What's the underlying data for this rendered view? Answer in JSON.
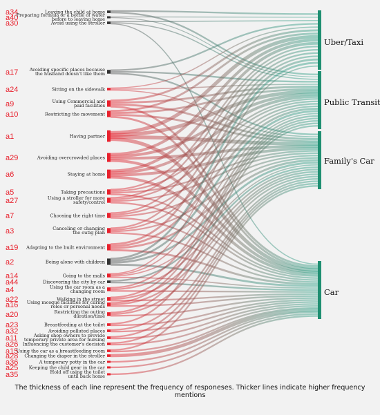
{
  "caption": "The thickness of each line represent the frequency of responeses. Thicker lines indicate higher frequency mentions",
  "colors": {
    "source_start": "#e8212d",
    "target_end": "#27a085",
    "neutral_start": "#555555",
    "node": "#1f8f72"
  },
  "targets": [
    {
      "id": "uber",
      "label": "Uber/Taxi"
    },
    {
      "id": "transit",
      "label": "Public Transit"
    },
    {
      "id": "family",
      "label": "Family's Car"
    },
    {
      "id": "car",
      "label": "Car"
    }
  ],
  "sources": [
    {
      "code": "a34",
      "text": [
        "Leaving the child at home"
      ],
      "weight": 2,
      "dark": true,
      "links": [
        "uber",
        "transit"
      ]
    },
    {
      "code": "a40",
      "text": [
        "Preparing formula or a bottle of water",
        "before to leaving home"
      ],
      "weight": 1,
      "dark": true,
      "links": [
        "uber",
        "transit"
      ]
    },
    {
      "code": "a30",
      "text": [
        "Avoid using the stroller"
      ],
      "weight": 2,
      "dark": true,
      "links": [
        "uber",
        "transit",
        "car"
      ]
    },
    {
      "code": "a17",
      "text": [
        "Avoiding specific places because",
        "the husband doesn't like them"
      ],
      "weight": 3,
      "dark": true,
      "links": [
        "uber",
        "transit",
        "family"
      ]
    },
    {
      "code": "a24",
      "text": [
        "Sitting on the sidewalk"
      ],
      "weight": 2,
      "dark": false,
      "links": [
        "uber",
        "transit",
        "family"
      ]
    },
    {
      "code": "a9",
      "text": [
        "Using Commercial and",
        "paid facilities"
      ],
      "weight": 5,
      "dark": false,
      "links": [
        "uber",
        "transit",
        "family",
        "car"
      ]
    },
    {
      "code": "a10",
      "text": [
        "Restricting the movement"
      ],
      "weight": 5,
      "dark": false,
      "links": [
        "uber",
        "transit",
        "family",
        "car"
      ]
    },
    {
      "code": "a1",
      "text": [
        "Having partner"
      ],
      "weight": 9,
      "dark": false,
      "links": [
        "uber",
        "transit",
        "family",
        "car"
      ]
    },
    {
      "code": "a29",
      "text": [
        "Avoiding overcrowded places"
      ],
      "weight": 7,
      "dark": false,
      "links": [
        "uber",
        "transit",
        "family",
        "car"
      ]
    },
    {
      "code": "a6",
      "text": [
        "Staying at home"
      ],
      "weight": 7,
      "dark": false,
      "links": [
        "uber",
        "transit",
        "family",
        "car"
      ]
    },
    {
      "code": "a5",
      "text": [
        "Taking precautions"
      ],
      "weight": 4,
      "dark": false,
      "links": [
        "uber",
        "transit",
        "family",
        "car"
      ]
    },
    {
      "code": "a27",
      "text": [
        "Using a stroller for more",
        "safety/control"
      ],
      "weight": 4,
      "dark": false,
      "links": [
        "uber",
        "transit",
        "family",
        "car"
      ]
    },
    {
      "code": "a7",
      "text": [
        "Choosing the right  time"
      ],
      "weight": 4,
      "dark": false,
      "links": [
        "uber",
        "transit",
        "family",
        "car"
      ]
    },
    {
      "code": "a3",
      "text": [
        "Canceling or changing",
        "the outig plan"
      ],
      "weight": 4,
      "dark": false,
      "links": [
        "uber",
        "transit",
        "family",
        "car"
      ]
    },
    {
      "code": "a19",
      "text": [
        "Adapting to the built environment"
      ],
      "weight": 5,
      "dark": false,
      "links": [
        "uber",
        "transit",
        "family",
        "car"
      ]
    },
    {
      "code": "a2",
      "text": [
        "Being alone with children"
      ],
      "weight": 5,
      "dark": true,
      "links": [
        "uber",
        "transit",
        "family",
        "car"
      ]
    },
    {
      "code": "a14",
      "text": [
        "Going to the malls"
      ],
      "weight": 3,
      "dark": false,
      "links": [
        "uber",
        "transit",
        "family",
        "car"
      ]
    },
    {
      "code": "a44",
      "text": [
        "Discovering the city by car"
      ],
      "weight": 2,
      "dark": true,
      "links": [
        "family",
        "car"
      ]
    },
    {
      "code": "a4",
      "text": [
        "Using the car room as a",
        "changing room"
      ],
      "weight": 3,
      "dark": false,
      "links": [
        "transit",
        "family",
        "car"
      ]
    },
    {
      "code": "a22",
      "text": [
        "Walking in the street"
      ],
      "weight": 3,
      "dark": false,
      "links": [
        "transit",
        "family",
        "car"
      ]
    },
    {
      "code": "a16",
      "text": [
        "Using mosque facilities for caring",
        "roles or personal needs"
      ],
      "weight": 3,
      "dark": false,
      "links": [
        "transit",
        "family",
        "car"
      ]
    },
    {
      "code": "a20",
      "text": [
        "Restricting the outing",
        "duration/time"
      ],
      "weight": 3,
      "dark": false,
      "links": [
        "transit",
        "family",
        "car"
      ]
    },
    {
      "code": "a23",
      "text": [
        "Breastfeeding at the toilet"
      ],
      "weight": 2,
      "dark": false,
      "links": [
        "transit",
        "car"
      ]
    },
    {
      "code": "a32",
      "text": [
        "Avoiding polluted places"
      ],
      "weight": 2,
      "dark": false,
      "links": [
        "family",
        "car"
      ]
    },
    {
      "code": "a11",
      "text": [
        "Asking shop owners to provide",
        "temporary private area for nursing"
      ],
      "weight": 2,
      "dark": false,
      "links": [
        "family",
        "car"
      ]
    },
    {
      "code": "a26",
      "text": [
        "Influencing the customer's decision"
      ],
      "weight": 2,
      "dark": false,
      "links": [
        "family",
        "car"
      ]
    },
    {
      "code": "a15",
      "text": [
        "Using the car as a breastfeeding room"
      ],
      "weight": 2,
      "dark": false,
      "links": [
        "family",
        "car"
      ]
    },
    {
      "code": "a28",
      "text": [
        "Changing the diaper in the stroller"
      ],
      "weight": 2,
      "dark": false,
      "links": [
        "car"
      ]
    },
    {
      "code": "a36",
      "text": [
        "A temporary potty in the car"
      ],
      "weight": 1,
      "dark": false,
      "links": [
        "car"
      ]
    },
    {
      "code": "a25",
      "text": [
        "Keeping the child gear in the car"
      ],
      "weight": 1,
      "dark": false,
      "links": [
        "car"
      ]
    },
    {
      "code": "a35",
      "text": [
        "Hold off using the toilet",
        "until back home"
      ],
      "weight": 1,
      "dark": false,
      "links": [
        "car"
      ]
    }
  ]
}
